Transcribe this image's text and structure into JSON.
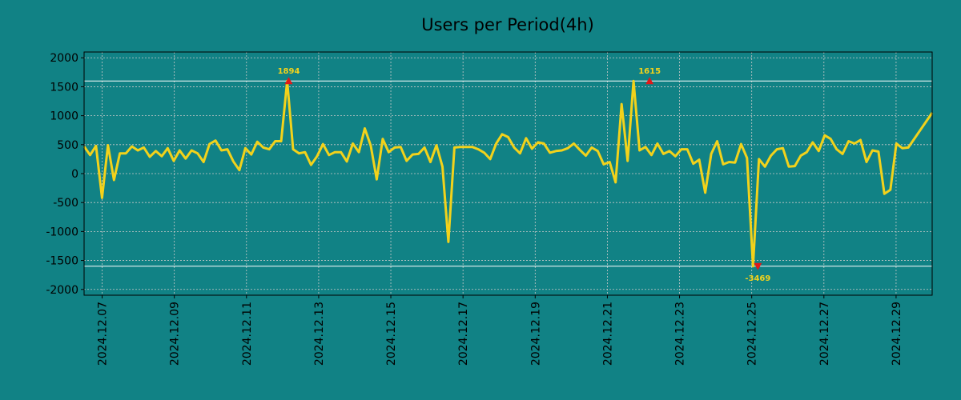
{
  "chart_data": {
    "type": "line",
    "title": "Users per Period(4h)",
    "xlabel": "",
    "ylabel": "",
    "ylim": [
      -2100,
      2100
    ],
    "y_ticks": [
      2000,
      1500,
      1000,
      500,
      0,
      -500,
      -1000,
      -1500,
      -2000
    ],
    "x_tick_labels": [
      "2024.12.07",
      "2024.12.09",
      "2024.12.11",
      "2024.12.13",
      "2024.12.15",
      "2024.12.17",
      "2024.12.19",
      "2024.12.21",
      "2024.12.23",
      "2024.12.25",
      "2024.12.27",
      "2024.12.29"
    ],
    "x_tick_positions": [
      0.5,
      2.5,
      4.5,
      6.5,
      8.5,
      10.5,
      12.5,
      14.5,
      16.5,
      18.5,
      20.5,
      22.5
    ],
    "x_range": [
      0,
      23.5
    ],
    "grid": true,
    "reference_lines": [
      1600,
      -1600
    ],
    "annotations": [
      {
        "label": "1894",
        "x": 5.67,
        "y": 1600,
        "marker": "up"
      },
      {
        "label": "1615",
        "x": 15.67,
        "y": 1600,
        "marker": "up"
      },
      {
        "label": "-3469",
        "x": 18.67,
        "y": -1600,
        "marker": "down"
      }
    ],
    "series": [
      {
        "name": "users",
        "color": "#f2d21b",
        "values": [
          470,
          320,
          480,
          -420,
          490,
          -110,
          350,
          350,
          470,
          400,
          450,
          290,
          390,
          300,
          440,
          220,
          400,
          260,
          400,
          350,
          200,
          510,
          570,
          400,
          420,
          210,
          60,
          440,
          330,
          550,
          450,
          420,
          560,
          560,
          1600,
          420,
          350,
          370,
          150,
          300,
          510,
          320,
          370,
          370,
          210,
          520,
          370,
          780,
          480,
          -100,
          600,
          370,
          450,
          460,
          220,
          330,
          340,
          450,
          200,
          490,
          120,
          -1180,
          450,
          460,
          460,
          460,
          420,
          360,
          250,
          520,
          680,
          630,
          450,
          350,
          610,
          430,
          540,
          520,
          360,
          390,
          400,
          440,
          520,
          410,
          310,
          450,
          390,
          160,
          200,
          -150,
          1200,
          220,
          1600,
          400,
          460,
          320,
          520,
          340,
          390,
          300,
          420,
          420,
          170,
          240,
          -330,
          340,
          560,
          160,
          200,
          190,
          510,
          270,
          -1600,
          250,
          120,
          310,
          420,
          440,
          120,
          130,
          310,
          370,
          540,
          390,
          660,
          600,
          420,
          340,
          560,
          520,
          580,
          200,
          400,
          380,
          -350,
          -280,
          520,
          440,
          450,
          600,
          750,
          900,
          1050
        ]
      }
    ]
  }
}
